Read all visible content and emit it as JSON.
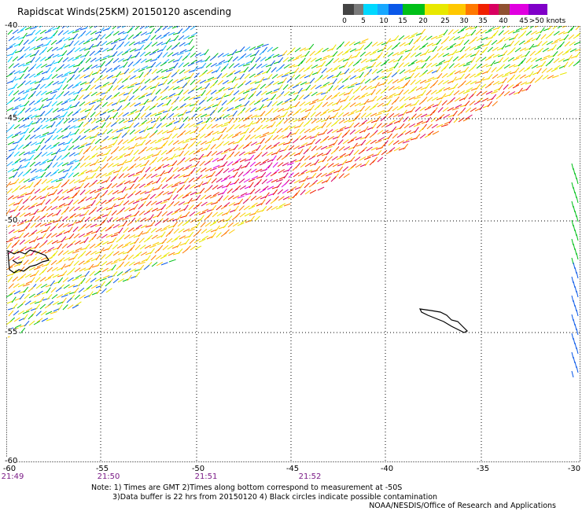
{
  "title": "Rapidscat Winds(25KM) 20150120 ascending",
  "scale": {
    "labels": [
      "0",
      "5",
      "10",
      "15",
      "20",
      "25",
      "30",
      "35",
      "40",
      "45",
      ">50 knots"
    ],
    "colors": [
      "#444444",
      "#7a7a7a",
      "#00d8ff",
      "#18a8ff",
      "#0a58e8",
      "#00c018",
      "#e8e800",
      "#ffc800",
      "#ff7800",
      "#f02000",
      "#d80060",
      "#905030",
      "#e000e0",
      "#8000c8"
    ]
  },
  "axes": {
    "lat_labels": [
      "-40",
      "-45",
      "-50",
      "-55",
      "-60"
    ],
    "lon_labels": [
      "-60",
      "-55",
      "-50",
      "-45",
      "-40",
      "-35",
      "-30"
    ],
    "time_labels": [
      "21:49",
      "21:50",
      "21:51",
      "21:52"
    ]
  },
  "notes": {
    "line1": "Note: 1) Times are GMT 2)Times along bottom correspond to measurement at -50S",
    "line2": "3)Data buffer is 22 hrs from 20150120 4) Black circles indicate possible contamination",
    "credit": "NOAA/NESDIS/Office of Research and Applications"
  }
}
